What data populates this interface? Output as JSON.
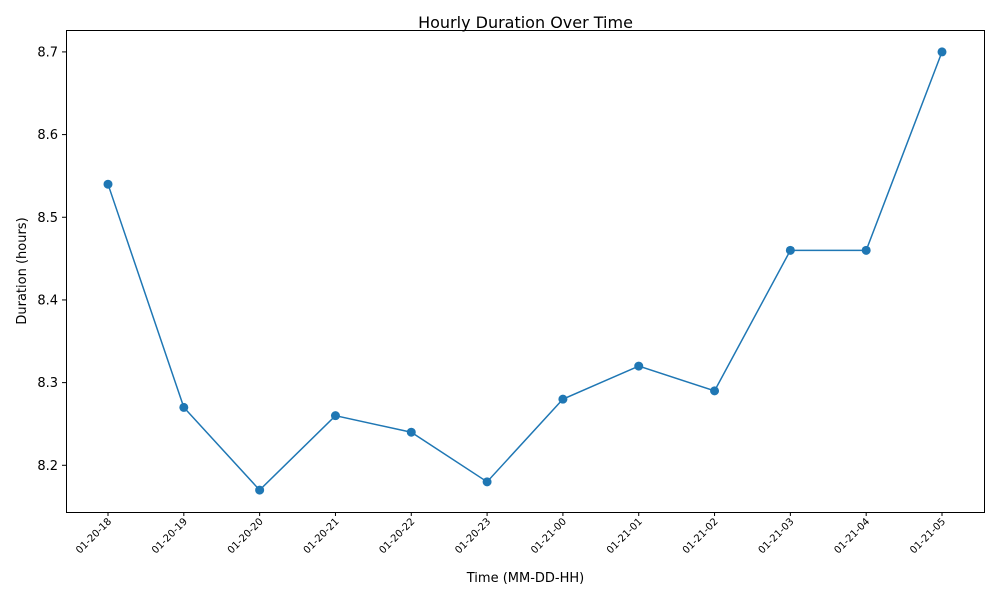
{
  "chart_data": {
    "type": "line",
    "title": "Hourly Duration Over Time",
    "xlabel": "Time (MM-DD-HH)",
    "ylabel": "Duration (hours)",
    "categories": [
      "01-20-18",
      "01-20-19",
      "01-20-20",
      "01-20-21",
      "01-20-22",
      "01-20-23",
      "01-21-00",
      "01-21-01",
      "01-21-02",
      "01-21-03",
      "01-21-04",
      "01-21-05"
    ],
    "series": [
      {
        "values": [
          8.54,
          8.27,
          8.17,
          8.26,
          8.24,
          8.18,
          8.28,
          8.32,
          8.29,
          8.46,
          8.46,
          8.7
        ]
      }
    ],
    "ylim": [
      8.1435,
      8.7265
    ],
    "yticks": [
      "8.2",
      "8.3",
      "8.4",
      "8.5",
      "8.6",
      "8.7"
    ],
    "grid": false,
    "marker": "circle",
    "color": "#1f77b4"
  }
}
